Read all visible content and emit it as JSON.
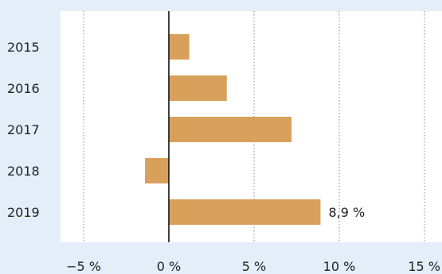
{
  "chart_data": {
    "type": "bar",
    "orientation": "horizontal",
    "categories": [
      "2015",
      "2016",
      "2017",
      "2018",
      "2019"
    ],
    "values": [
      1.2,
      3.4,
      7.2,
      -1.4,
      8.9
    ],
    "xlim": [
      -5,
      15
    ],
    "xticks": [
      -5,
      0,
      5,
      10,
      15
    ],
    "xtick_labels": [
      "−5 %",
      "0 %",
      "5 %",
      "10 %",
      "15 %"
    ],
    "data_labels": [
      {
        "category": "2019",
        "text": "8,9 %"
      }
    ],
    "grid": "vertical dotted",
    "bar_color": "#d9a05b",
    "plot_background": "#ffffff",
    "page_background": "#e3eef8",
    "title": "",
    "xlabel": "",
    "ylabel": ""
  }
}
